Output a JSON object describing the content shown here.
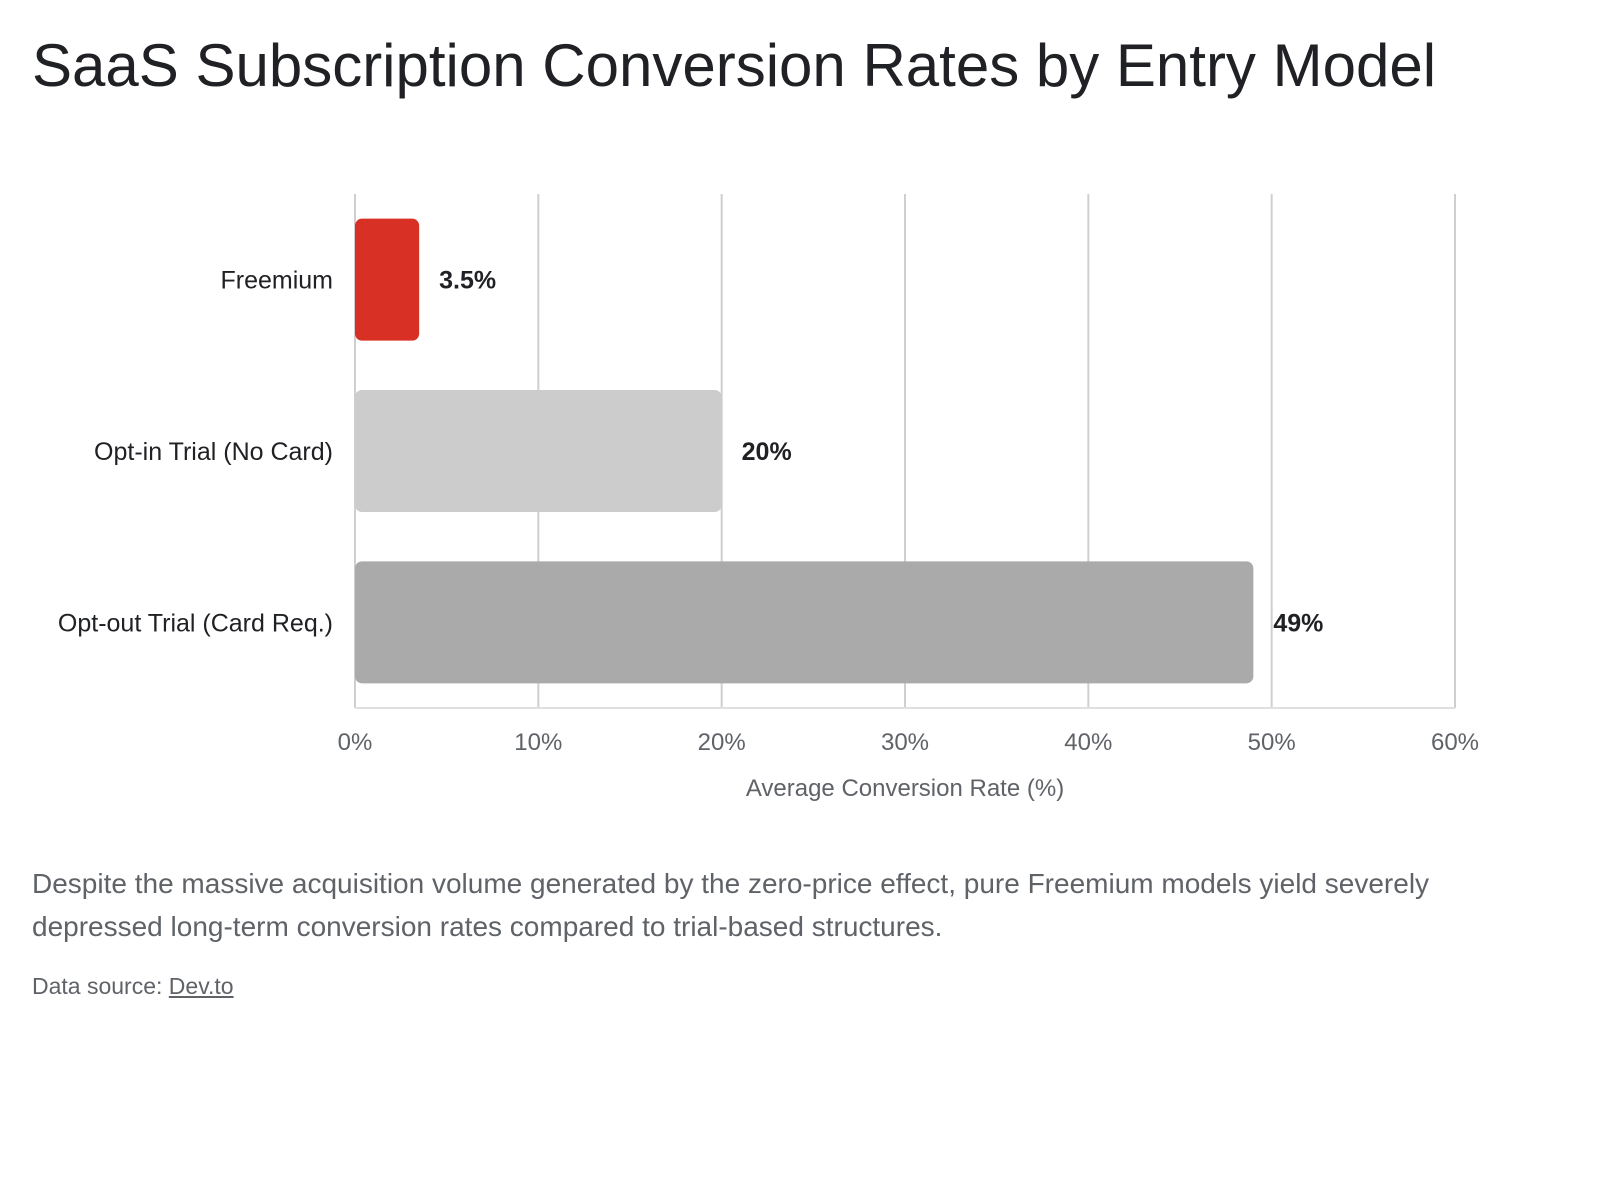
{
  "title": "SaaS Subscription Conversion Rates by Entry Model",
  "description": "Despite the massive acquisition volume generated by the zero-price effect, pure Freemium models yield severely depressed long-term conversion rates compared to trial-based structures.",
  "source": {
    "prefix": "Data source: ",
    "link_text": "Dev.to"
  },
  "chart_data": {
    "type": "bar",
    "orientation": "horizontal",
    "title": "SaaS Subscription Conversion Rates by Entry Model",
    "xlabel": "Average Conversion Rate (%)",
    "ylabel": "",
    "categories": [
      "Freemium",
      "Opt-in Trial (No Card)",
      "Opt-out Trial (Card Req.)"
    ],
    "values": [
      3.5,
      20,
      49
    ],
    "value_labels": [
      "3.5%",
      "20%",
      "49%"
    ],
    "bar_colors": [
      "#d93025",
      "#cccccc",
      "#aaaaaa"
    ],
    "xlim": [
      0,
      60
    ],
    "x_ticks": [
      0,
      10,
      20,
      30,
      40,
      50,
      60
    ],
    "x_tick_labels": [
      "0%",
      "10%",
      "20%",
      "30%",
      "40%",
      "50%",
      "60%"
    ],
    "grid": true
  }
}
